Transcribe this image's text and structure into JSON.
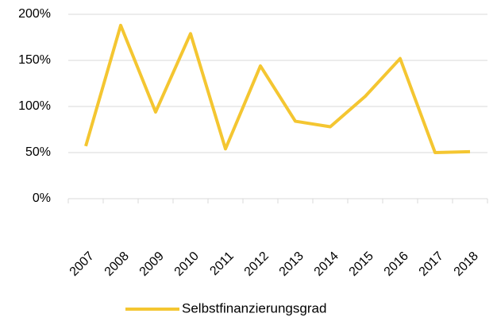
{
  "chart_data": {
    "type": "line",
    "categories": [
      "2007",
      "2008",
      "2009",
      "2010",
      "2011",
      "2012",
      "2013",
      "2014",
      "2015",
      "2016",
      "2017",
      "2018"
    ],
    "series": [
      {
        "name": "Selbstfinanzierungsgrad",
        "color": "#f4c631",
        "values": [
          57,
          188,
          94,
          179,
          54,
          144,
          84,
          78,
          111,
          152,
          50,
          51
        ]
      }
    ],
    "ylim": [
      0,
      200
    ],
    "yticks": [
      {
        "value": 0,
        "label": "0%"
      },
      {
        "value": 50,
        "label": "50%"
      },
      {
        "value": 100,
        "label": "100%"
      },
      {
        "value": 150,
        "label": "150%"
      },
      {
        "value": 200,
        "label": "200%"
      }
    ],
    "grid": true,
    "legend": "bottom"
  }
}
